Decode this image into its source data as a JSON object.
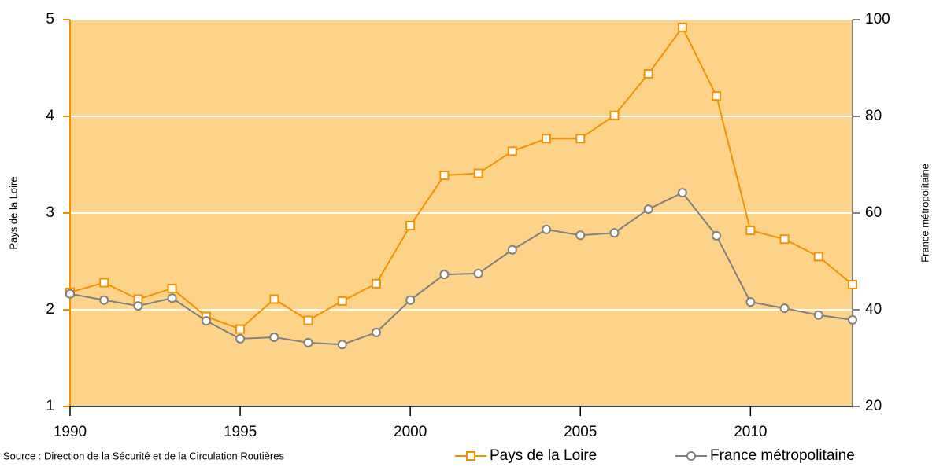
{
  "chart_data": {
    "type": "line",
    "x": [
      1990,
      1991,
      1992,
      1993,
      1994,
      1995,
      1996,
      1997,
      1998,
      1999,
      2000,
      2001,
      2002,
      2003,
      2004,
      2005,
      2006,
      2007,
      2008,
      2009,
      2010,
      2011,
      2012,
      2013
    ],
    "series": [
      {
        "name": "Pays de la Loire",
        "color": "#f39200",
        "marker": "square",
        "values": [
          2.18,
          2.28,
          2.11,
          2.22,
          1.93,
          1.8,
          2.11,
          1.89,
          2.09,
          2.27,
          2.87,
          3.39,
          3.41,
          3.64,
          3.77,
          3.77,
          4.01,
          4.44,
          4.92,
          4.21,
          2.82,
          2.73,
          2.55,
          2.26
        ]
      },
      {
        "name": "France métropolitaine",
        "color": "#808080",
        "marker": "circle",
        "axis": "y2",
        "values": [
          43.3,
          42.0,
          40.8,
          42.4,
          37.7,
          34.0,
          34.3,
          33.2,
          32.8,
          35.3,
          42.0,
          47.3,
          47.5,
          52.4,
          56.6,
          55.4,
          55.9,
          60.8,
          64.2,
          55.3,
          41.6,
          40.3,
          38.9,
          37.9
        ]
      }
    ],
    "ylabel": "Pays de la Loire",
    "y2label": "France métropolitaine",
    "source": "Source : Direction de la Sécurité et de la Circulation Routières",
    "xlim": [
      1990,
      2013
    ],
    "xticks": [
      1990,
      1995,
      2000,
      2005,
      2010
    ],
    "ylim": [
      1,
      5
    ],
    "yticks": [
      1,
      2,
      3,
      4,
      5
    ],
    "y2lim": [
      20,
      100
    ],
    "y2ticks": [
      20,
      40,
      60,
      80,
      100
    ],
    "grid": true,
    "background": "#fdd38a",
    "legend": "bottom"
  }
}
